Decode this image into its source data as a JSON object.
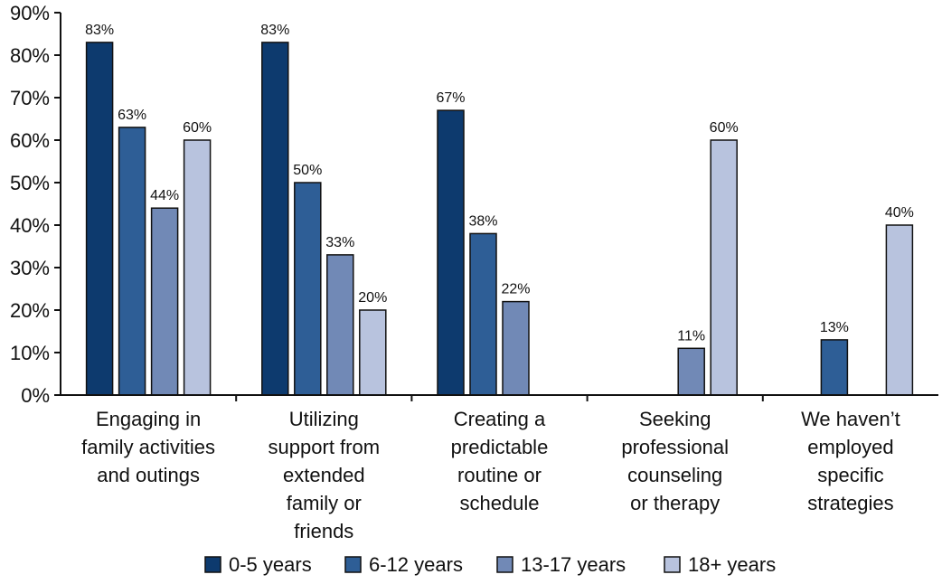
{
  "chart_data": {
    "type": "bar",
    "title": "",
    "xlabel": "",
    "ylabel": "",
    "ylim": [
      0,
      90
    ],
    "yticks": [
      0,
      10,
      20,
      30,
      40,
      50,
      60,
      70,
      80,
      90
    ],
    "ytick_labels": [
      "0%",
      "10%",
      "20%",
      "30%",
      "40%",
      "50%",
      "60%",
      "70%",
      "80%",
      "90%"
    ],
    "grid": false,
    "legend_position": "bottom",
    "categories": [
      [
        "Engaging in",
        "family activities",
        "and outings"
      ],
      [
        "Utilizing",
        "support from",
        "extended",
        "family or",
        "friends"
      ],
      [
        "Creating a",
        "predictable",
        "routine or",
        "schedule"
      ],
      [
        "Seeking",
        "professional",
        "counseling",
        "or therapy"
      ],
      [
        "We haven’t",
        "employed",
        "specific",
        "strategies"
      ]
    ],
    "series": [
      {
        "name": "0-5 years",
        "color": "#0d3a6e",
        "values": [
          83,
          83,
          67,
          null,
          null
        ],
        "labels": [
          "83%",
          "83%",
          "67%",
          "",
          ""
        ]
      },
      {
        "name": "6-12 years",
        "color": "#2e5e96",
        "values": [
          63,
          50,
          38,
          null,
          13
        ],
        "labels": [
          "63%",
          "50%",
          "38%",
          "",
          "13%"
        ]
      },
      {
        "name": "13-17 years",
        "color": "#7189b6",
        "values": [
          44,
          33,
          22,
          11,
          null
        ],
        "labels": [
          "44%",
          "33%",
          "22%",
          "11%",
          ""
        ]
      },
      {
        "name": "18+ years",
        "color": "#b8c3de",
        "values": [
          60,
          20,
          null,
          60,
          40
        ],
        "labels": [
          "60%",
          "20%",
          "",
          "60%",
          "40%"
        ]
      }
    ]
  }
}
